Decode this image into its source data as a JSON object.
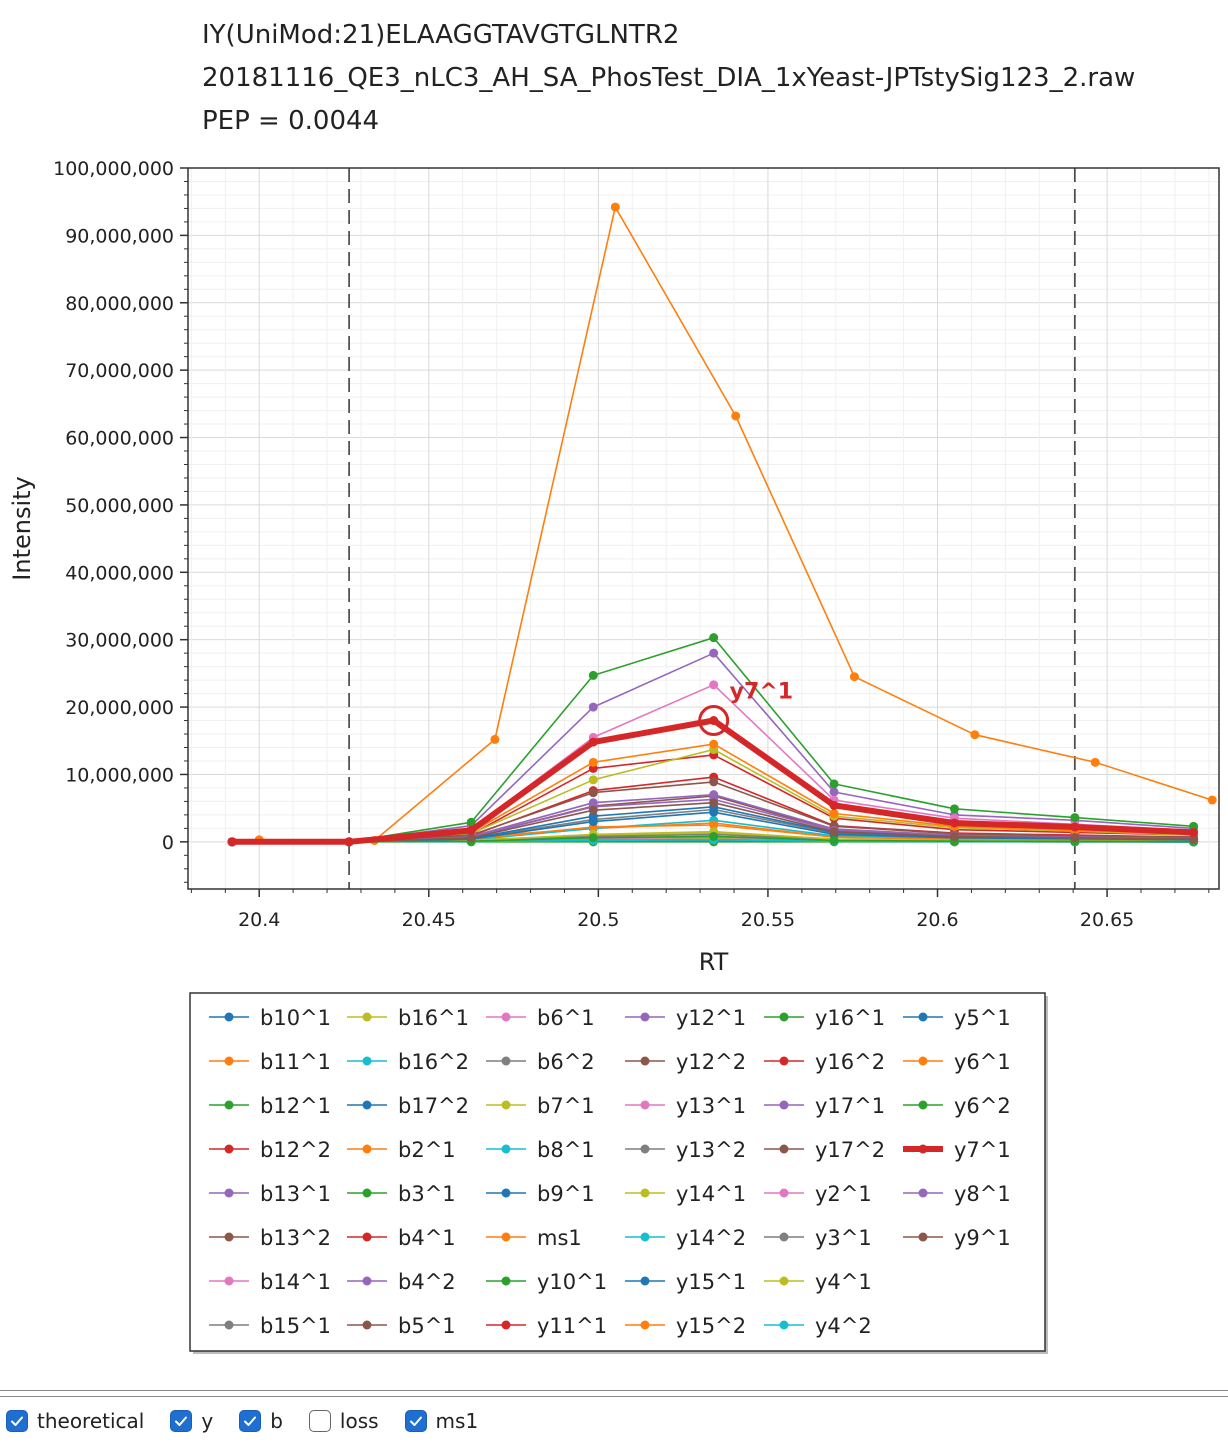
{
  "title_lines": [
    "IY(UniMod:21)ELAAGGTAVGTGLNTR2",
    "20181116_QE3_nLC3_AH_SA_PhosTest_DIA_1xYeast-JPTstySig123_2.raw",
    "PEP = 0.0044"
  ],
  "checkboxes": [
    {
      "label": "theoretical",
      "checked": true
    },
    {
      "label": "y",
      "checked": true
    },
    {
      "label": "b",
      "checked": true
    },
    {
      "label": "loss",
      "checked": false
    },
    {
      "label": "ms1",
      "checked": true
    }
  ],
  "chart_data": {
    "type": "line",
    "xlabel": "RT",
    "ylabel": "Intensity",
    "xlim": [
      20.379,
      20.683
    ],
    "ylim": [
      -7000000,
      100000000
    ],
    "xticks": [
      "20.4",
      "20.45",
      "20.5",
      "20.55",
      "20.6",
      "20.65"
    ],
    "yticks": [
      "100,000,000",
      "90,000,000",
      "80,000,000",
      "70,000,000",
      "60,000,000",
      "50,000,000",
      "40,000,000",
      "30,000,000",
      "20,000,000",
      "10,000,000",
      "0"
    ],
    "grid": true,
    "boundaries": [
      20.4265,
      20.6405
    ],
    "highlight": {
      "series": "y7^1",
      "label": "y7^1",
      "x": 20.534,
      "y": 18000000
    },
    "fragment_x": [
      20.392,
      20.4265,
      20.4625,
      20.4985,
      20.534,
      20.5695,
      20.605,
      20.6405,
      20.6755
    ],
    "ms1_x": [
      20.4,
      20.434,
      20.4695,
      20.505,
      20.5405,
      20.5755,
      20.611,
      20.6465,
      20.681
    ],
    "legend_position": "bottom",
    "series": [
      {
        "name": "b10^1",
        "color": "#1f77b4",
        "values": [
          0,
          0,
          100000,
          300000,
          500000,
          100000,
          50000,
          30000,
          20000
        ]
      },
      {
        "name": "b11^1",
        "color": "#ff7f0e",
        "values": [
          0,
          0,
          80000,
          250000,
          400000,
          80000,
          40000,
          30000,
          20000
        ]
      },
      {
        "name": "b12^1",
        "color": "#2ca02c",
        "values": [
          0,
          0,
          60000,
          200000,
          300000,
          60000,
          30000,
          20000,
          10000
        ]
      },
      {
        "name": "b12^2",
        "color": "#d62728",
        "values": [
          0,
          0,
          50000,
          150000,
          250000,
          50000,
          30000,
          20000,
          10000
        ]
      },
      {
        "name": "b13^1",
        "color": "#9467bd",
        "values": [
          0,
          0,
          90000,
          300000,
          450000,
          90000,
          40000,
          30000,
          20000
        ]
      },
      {
        "name": "b13^2",
        "color": "#8c564b",
        "values": [
          0,
          0,
          40000,
          120000,
          200000,
          40000,
          20000,
          10000,
          10000
        ]
      },
      {
        "name": "b14^1",
        "color": "#e377c2",
        "values": [
          0,
          0,
          120000,
          400000,
          600000,
          120000,
          60000,
          40000,
          30000
        ]
      },
      {
        "name": "b15^1",
        "color": "#7f7f7f",
        "values": [
          0,
          0,
          70000,
          200000,
          350000,
          70000,
          30000,
          20000,
          10000
        ]
      },
      {
        "name": "b16^1",
        "color": "#bcbd22",
        "values": [
          0,
          0,
          300000,
          900000,
          1300000,
          300000,
          150000,
          100000,
          80000
        ]
      },
      {
        "name": "b16^2",
        "color": "#17becf",
        "values": [
          0,
          0,
          50000,
          150000,
          250000,
          50000,
          30000,
          20000,
          10000
        ]
      },
      {
        "name": "b17^2",
        "color": "#1f77b4",
        "values": [
          0,
          0,
          60000,
          180000,
          300000,
          60000,
          30000,
          20000,
          10000
        ]
      },
      {
        "name": "b2^1",
        "color": "#ff7f0e",
        "values": [
          0,
          0,
          700000,
          2000000,
          2800000,
          700000,
          350000,
          250000,
          180000
        ]
      },
      {
        "name": "b3^1",
        "color": "#2ca02c",
        "values": [
          0,
          0,
          200000,
          600000,
          800000,
          200000,
          100000,
          70000,
          50000
        ]
      },
      {
        "name": "b4^1",
        "color": "#d62728",
        "values": [
          0,
          0,
          150000,
          500000,
          700000,
          150000,
          80000,
          60000,
          40000
        ]
      },
      {
        "name": "b4^2",
        "color": "#9467bd",
        "values": [
          0,
          0,
          50000,
          150000,
          250000,
          50000,
          30000,
          20000,
          10000
        ]
      },
      {
        "name": "b5^1",
        "color": "#8c564b",
        "values": [
          0,
          0,
          100000,
          350000,
          500000,
          100000,
          50000,
          40000,
          30000
        ]
      },
      {
        "name": "b6^1",
        "color": "#e377c2",
        "values": [
          0,
          0,
          80000,
          300000,
          400000,
          80000,
          40000,
          30000,
          20000
        ]
      },
      {
        "name": "b6^2",
        "color": "#7f7f7f",
        "values": [
          0,
          0,
          40000,
          120000,
          200000,
          40000,
          20000,
          10000,
          10000
        ]
      },
      {
        "name": "b7^1",
        "color": "#bcbd22",
        "values": [
          0,
          0,
          90000,
          300000,
          450000,
          90000,
          40000,
          30000,
          20000
        ]
      },
      {
        "name": "b8^1",
        "color": "#17becf",
        "values": [
          0,
          0,
          70000,
          250000,
          350000,
          70000,
          30000,
          20000,
          10000
        ]
      },
      {
        "name": "b9^1",
        "color": "#1f77b4",
        "values": [
          0,
          0,
          60000,
          200000,
          300000,
          60000,
          30000,
          20000,
          10000
        ]
      },
      {
        "name": "ms1",
        "color": "#ff7f0e",
        "x_key": "ms1_x",
        "values": [
          300000,
          200000,
          15200000,
          94200000,
          63200000,
          24500000,
          15900000,
          11800000,
          6200000
        ]
      },
      {
        "name": "y10^1",
        "color": "#2ca02c",
        "values": [
          0,
          0,
          0,
          0,
          0,
          0,
          0,
          0,
          0
        ]
      },
      {
        "name": "y11^1",
        "color": "#d62728",
        "values": [
          0,
          0,
          1100000,
          10900000,
          12900000,
          3500000,
          1800000,
          1400000,
          1000000
        ]
      },
      {
        "name": "y12^1",
        "color": "#9467bd",
        "values": [
          0,
          0,
          2400000,
          20000000,
          28000000,
          7400000,
          4000000,
          3200000,
          2000000
        ]
      },
      {
        "name": "y12^2",
        "color": "#8c564b",
        "values": [
          0,
          0,
          700000,
          5300000,
          6800000,
          1700000,
          900000,
          700000,
          500000
        ]
      },
      {
        "name": "y13^1",
        "color": "#e377c2",
        "values": [
          0,
          0,
          1900000,
          15500000,
          23300000,
          6200000,
          3500000,
          2600000,
          1700000
        ]
      },
      {
        "name": "y13^2",
        "color": "#7f7f7f",
        "values": [
          0,
          0,
          500000,
          3300000,
          4800000,
          1300000,
          700000,
          500000,
          400000
        ]
      },
      {
        "name": "y14^1",
        "color": "#bcbd22",
        "values": [
          0,
          0,
          1200000,
          9200000,
          13700000,
          3800000,
          2100000,
          1600000,
          1000000
        ]
      },
      {
        "name": "y14^2",
        "color": "#17becf",
        "values": [
          0,
          0,
          300000,
          2000000,
          3200000,
          900000,
          500000,
          400000,
          300000
        ]
      },
      {
        "name": "y15^1",
        "color": "#1f77b4",
        "values": [
          0,
          0,
          500000,
          3800000,
          5200000,
          1400000,
          800000,
          600000,
          400000
        ]
      },
      {
        "name": "y15^2",
        "color": "#ff7f0e",
        "values": [
          0,
          0,
          400000,
          2200000,
          2500000,
          700000,
          400000,
          300000,
          200000
        ]
      },
      {
        "name": "y16^1",
        "color": "#2ca02c",
        "values": [
          0,
          0,
          2900000,
          24700000,
          30300000,
          8600000,
          4900000,
          3600000,
          2300000
        ]
      },
      {
        "name": "y16^2",
        "color": "#d62728",
        "values": [
          0,
          0,
          900000,
          7600000,
          9600000,
          2400000,
          1300000,
          1000000,
          700000
        ]
      },
      {
        "name": "y17^1",
        "color": "#9467bd",
        "values": [
          0,
          0,
          800000,
          5800000,
          7000000,
          1900000,
          1000000,
          800000,
          600000
        ]
      },
      {
        "name": "y17^2",
        "color": "#8c564b",
        "values": [
          0,
          0,
          1000000,
          7300000,
          8900000,
          2300000,
          1200000,
          900000,
          700000
        ]
      },
      {
        "name": "y2^1",
        "color": "#e377c2",
        "values": [
          0,
          0,
          100000,
          500000,
          700000,
          200000,
          100000,
          80000,
          50000
        ]
      },
      {
        "name": "y3^1",
        "color": "#7f7f7f",
        "values": [
          0,
          0,
          150000,
          800000,
          1100000,
          300000,
          150000,
          100000,
          80000
        ]
      },
      {
        "name": "y4^1",
        "color": "#bcbd22",
        "values": [
          0,
          0,
          200000,
          1100000,
          1500000,
          400000,
          200000,
          150000,
          100000
        ]
      },
      {
        "name": "y4^2",
        "color": "#17becf",
        "values": [
          0,
          0,
          50000,
          200000,
          300000,
          80000,
          40000,
          30000,
          20000
        ]
      },
      {
        "name": "y5^1",
        "color": "#1f77b4",
        "values": [
          0,
          0,
          400000,
          3000000,
          4400000,
          1100000,
          600000,
          450000,
          300000
        ]
      },
      {
        "name": "y6^1",
        "color": "#ff7f0e",
        "values": [
          0,
          0,
          1400000,
          11800000,
          14500000,
          4200000,
          2300000,
          1700000,
          1100000
        ]
      },
      {
        "name": "y6^2",
        "color": "#2ca02c",
        "values": [
          0,
          0,
          100000,
          600000,
          800000,
          200000,
          100000,
          80000,
          50000
        ]
      },
      {
        "name": "y7^1",
        "color": "#d62728",
        "thick": true,
        "values": [
          0,
          0,
          1700000,
          14800000,
          18000000,
          5400000,
          2800000,
          2200000,
          1400000
        ]
      },
      {
        "name": "y8^1",
        "color": "#9467bd",
        "values": [
          0,
          0,
          700000,
          5200000,
          6300000,
          1700000,
          900000,
          700000,
          500000
        ]
      },
      {
        "name": "y9^1",
        "color": "#8c564b",
        "values": [
          0,
          0,
          600000,
          4700000,
          5800000,
          1500000,
          800000,
          600000,
          400000
        ]
      }
    ]
  }
}
